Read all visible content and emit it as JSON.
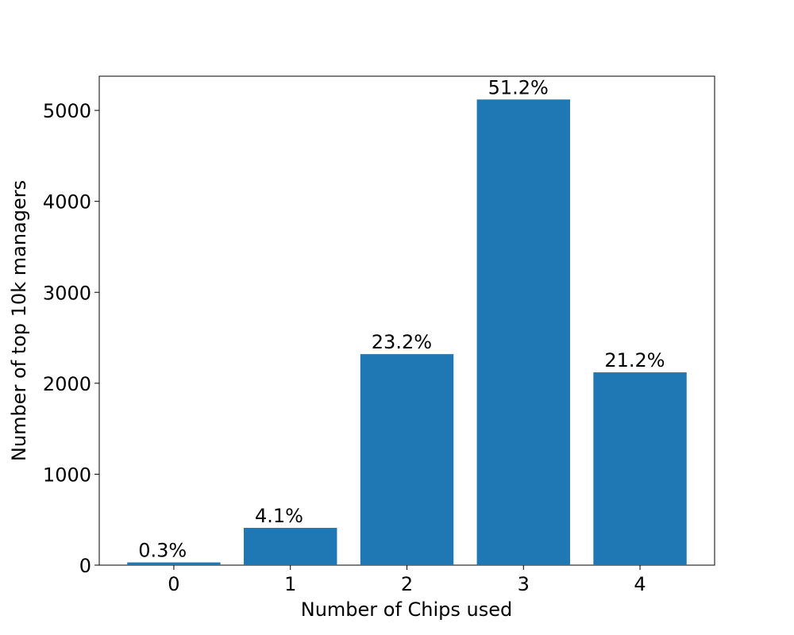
{
  "chart_data": {
    "type": "bar",
    "categories": [
      "0",
      "1",
      "2",
      "3",
      "4"
    ],
    "values": [
      30,
      410,
      2320,
      5120,
      2120
    ],
    "value_labels": [
      "0.3%",
      "4.1%",
      "23.2%",
      "51.2%",
      "21.2%"
    ],
    "color": "#1f77b4",
    "xlabel": "Number of Chips used",
    "ylabel": "Number of top 10k managers",
    "ylim": [
      0,
      5376
    ],
    "yticks": [
      0,
      1000,
      2000,
      3000,
      4000,
      5000
    ],
    "grid": false
  }
}
